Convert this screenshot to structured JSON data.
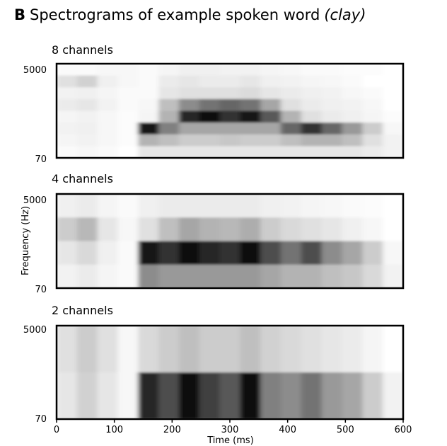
{
  "figure": {
    "panel_letter": "B",
    "title_main": "Spectrograms of example spoken word",
    "title_word": "clay"
  },
  "chart_data": {
    "type": "heatmap",
    "x_axis": {
      "label": "Time (ms)",
      "range": [
        0,
        600
      ],
      "ticks": [
        0,
        100,
        200,
        300,
        400,
        500,
        600
      ]
    },
    "y_axis": {
      "label": "Frequency (Hz)",
      "range": [
        70,
        5000
      ],
      "tick_labels": [
        "5000",
        "70"
      ],
      "scale": "log"
    },
    "colormap": "grayscale (white = low energy, black = high energy)",
    "panels": [
      {
        "title": "8 channels",
        "channels": 8,
        "intensity": [
          [
            0.02,
            0.02,
            0.03,
            0.03,
            0.02,
            0.04,
            0.06,
            0.06,
            0.05,
            0.05,
            0.04,
            0.03,
            0.02,
            0.02,
            0.01,
            0.01,
            0.0
          ],
          [
            0.12,
            0.18,
            0.06,
            0.03,
            0.02,
            0.08,
            0.1,
            0.08,
            0.08,
            0.1,
            0.06,
            0.05,
            0.04,
            0.03,
            0.02,
            0.0,
            0.0
          ],
          [
            0.05,
            0.06,
            0.04,
            0.02,
            0.02,
            0.1,
            0.12,
            0.12,
            0.12,
            0.14,
            0.1,
            0.08,
            0.06,
            0.05,
            0.03,
            0.02,
            0.0
          ],
          [
            0.08,
            0.1,
            0.05,
            0.02,
            0.03,
            0.25,
            0.45,
            0.55,
            0.6,
            0.55,
            0.35,
            0.12,
            0.08,
            0.06,
            0.05,
            0.03,
            0.0
          ],
          [
            0.04,
            0.05,
            0.03,
            0.01,
            0.04,
            0.3,
            0.85,
            0.95,
            0.8,
            0.9,
            0.65,
            0.3,
            0.12,
            0.08,
            0.06,
            0.04,
            0.01
          ],
          [
            0.05,
            0.06,
            0.03,
            0.01,
            0.9,
            0.5,
            0.35,
            0.35,
            0.35,
            0.35,
            0.35,
            0.6,
            0.8,
            0.6,
            0.4,
            0.2,
            0.03
          ],
          [
            0.04,
            0.05,
            0.03,
            0.01,
            0.3,
            0.25,
            0.2,
            0.2,
            0.22,
            0.2,
            0.2,
            0.25,
            0.3,
            0.3,
            0.25,
            0.12,
            0.05
          ],
          [
            0.02,
            0.03,
            0.02,
            0.0,
            0.1,
            0.1,
            0.1,
            0.1,
            0.1,
            0.1,
            0.1,
            0.1,
            0.1,
            0.1,
            0.1,
            0.08,
            0.05
          ]
        ]
      },
      {
        "title": "4 channels",
        "channels": 4,
        "intensity": [
          [
            0.06,
            0.08,
            0.04,
            0.02,
            0.06,
            0.08,
            0.08,
            0.08,
            0.08,
            0.08,
            0.06,
            0.05,
            0.04,
            0.03,
            0.02,
            0.01,
            0.0
          ],
          [
            0.2,
            0.28,
            0.1,
            0.03,
            0.12,
            0.25,
            0.35,
            0.3,
            0.28,
            0.32,
            0.2,
            0.15,
            0.12,
            0.1,
            0.06,
            0.03,
            0.0
          ],
          [
            0.1,
            0.15,
            0.06,
            0.02,
            0.9,
            0.8,
            0.95,
            0.85,
            0.8,
            0.95,
            0.7,
            0.55,
            0.7,
            0.45,
            0.35,
            0.2,
            0.03
          ],
          [
            0.05,
            0.08,
            0.04,
            0.02,
            0.45,
            0.4,
            0.4,
            0.4,
            0.4,
            0.4,
            0.35,
            0.3,
            0.3,
            0.25,
            0.22,
            0.15,
            0.05
          ]
        ]
      },
      {
        "title": "2 channels",
        "channels": 2,
        "intensity": [
          [
            0.12,
            0.2,
            0.12,
            0.03,
            0.15,
            0.2,
            0.25,
            0.2,
            0.2,
            0.25,
            0.18,
            0.15,
            0.12,
            0.1,
            0.08,
            0.04,
            0.0
          ],
          [
            0.1,
            0.18,
            0.1,
            0.03,
            0.85,
            0.7,
            0.95,
            0.75,
            0.65,
            0.95,
            0.5,
            0.45,
            0.55,
            0.4,
            0.35,
            0.2,
            0.05
          ]
        ]
      }
    ]
  }
}
